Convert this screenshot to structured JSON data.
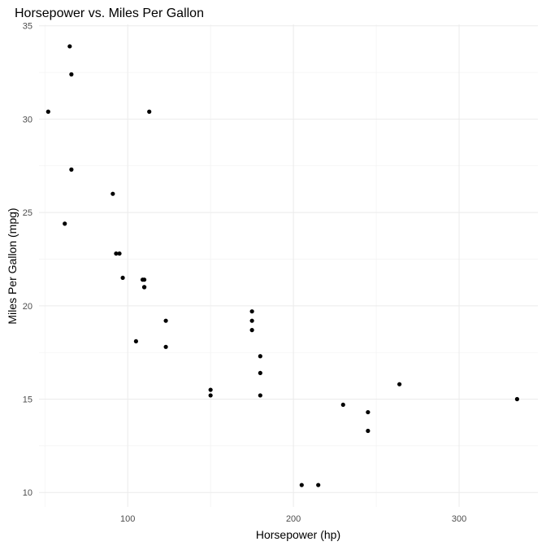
{
  "chart_data": {
    "type": "scatter",
    "title": "Horsepower vs. Miles Per Gallon",
    "xlabel": "Horsepower (hp)",
    "ylabel": "Miles Per Gallon (mpg)",
    "xlim": [
      46.45,
      347.55
    ],
    "ylim": [
      9.225,
      35.075
    ],
    "xticks": [
      100,
      200,
      300
    ],
    "yticks": [
      10,
      15,
      20,
      25,
      30,
      35
    ],
    "grid": true,
    "point_color": "#000000",
    "points": [
      {
        "x": 110,
        "y": 21.0
      },
      {
        "x": 110,
        "y": 21.0
      },
      {
        "x": 93,
        "y": 22.8
      },
      {
        "x": 110,
        "y": 21.4
      },
      {
        "x": 175,
        "y": 18.7
      },
      {
        "x": 105,
        "y": 18.1
      },
      {
        "x": 245,
        "y": 14.3
      },
      {
        "x": 62,
        "y": 24.4
      },
      {
        "x": 95,
        "y": 22.8
      },
      {
        "x": 123,
        "y": 19.2
      },
      {
        "x": 123,
        "y": 17.8
      },
      {
        "x": 180,
        "y": 16.4
      },
      {
        "x": 180,
        "y": 17.3
      },
      {
        "x": 180,
        "y": 15.2
      },
      {
        "x": 205,
        "y": 10.4
      },
      {
        "x": 215,
        "y": 10.4
      },
      {
        "x": 230,
        "y": 14.7
      },
      {
        "x": 66,
        "y": 32.4
      },
      {
        "x": 52,
        "y": 30.4
      },
      {
        "x": 65,
        "y": 33.9
      },
      {
        "x": 97,
        "y": 21.5
      },
      {
        "x": 150,
        "y": 15.5
      },
      {
        "x": 150,
        "y": 15.2
      },
      {
        "x": 245,
        "y": 13.3
      },
      {
        "x": 175,
        "y": 19.2
      },
      {
        "x": 66,
        "y": 27.3
      },
      {
        "x": 91,
        "y": 26.0
      },
      {
        "x": 113,
        "y": 30.4
      },
      {
        "x": 264,
        "y": 15.8
      },
      {
        "x": 175,
        "y": 19.7
      },
      {
        "x": 335,
        "y": 15.0
      },
      {
        "x": 109,
        "y": 21.4
      }
    ]
  }
}
